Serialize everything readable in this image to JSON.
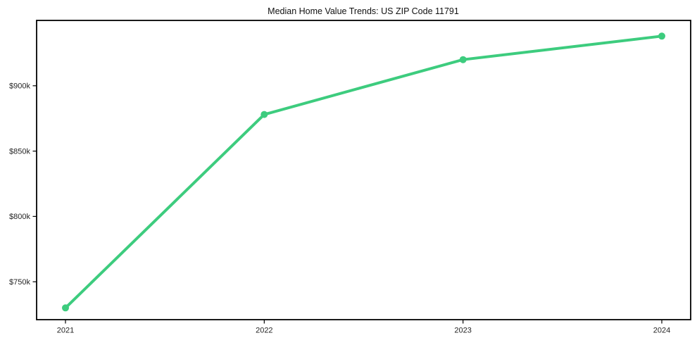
{
  "chart_data": {
    "type": "line",
    "title": "Median Home Value Trends: US ZIP Code 11791",
    "xlabel": "",
    "ylabel": "",
    "categories": [
      "2021",
      "2022",
      "2023",
      "2024"
    ],
    "series": [
      {
        "name": "Median Home Value",
        "color": "#3dcc7e",
        "values": [
          730000,
          878000,
          920000,
          938000
        ]
      }
    ],
    "yticks": [
      {
        "label": "$750k",
        "value": 750000
      },
      {
        "label": "$800k",
        "value": 800000
      },
      {
        "label": "$850k",
        "value": 850000
      },
      {
        "label": "$900k",
        "value": 900000
      }
    ],
    "ylim": [
      721000,
      950000
    ],
    "grid": false,
    "legend_position": "none",
    "marker": "circle",
    "axis_color": "#000000"
  }
}
